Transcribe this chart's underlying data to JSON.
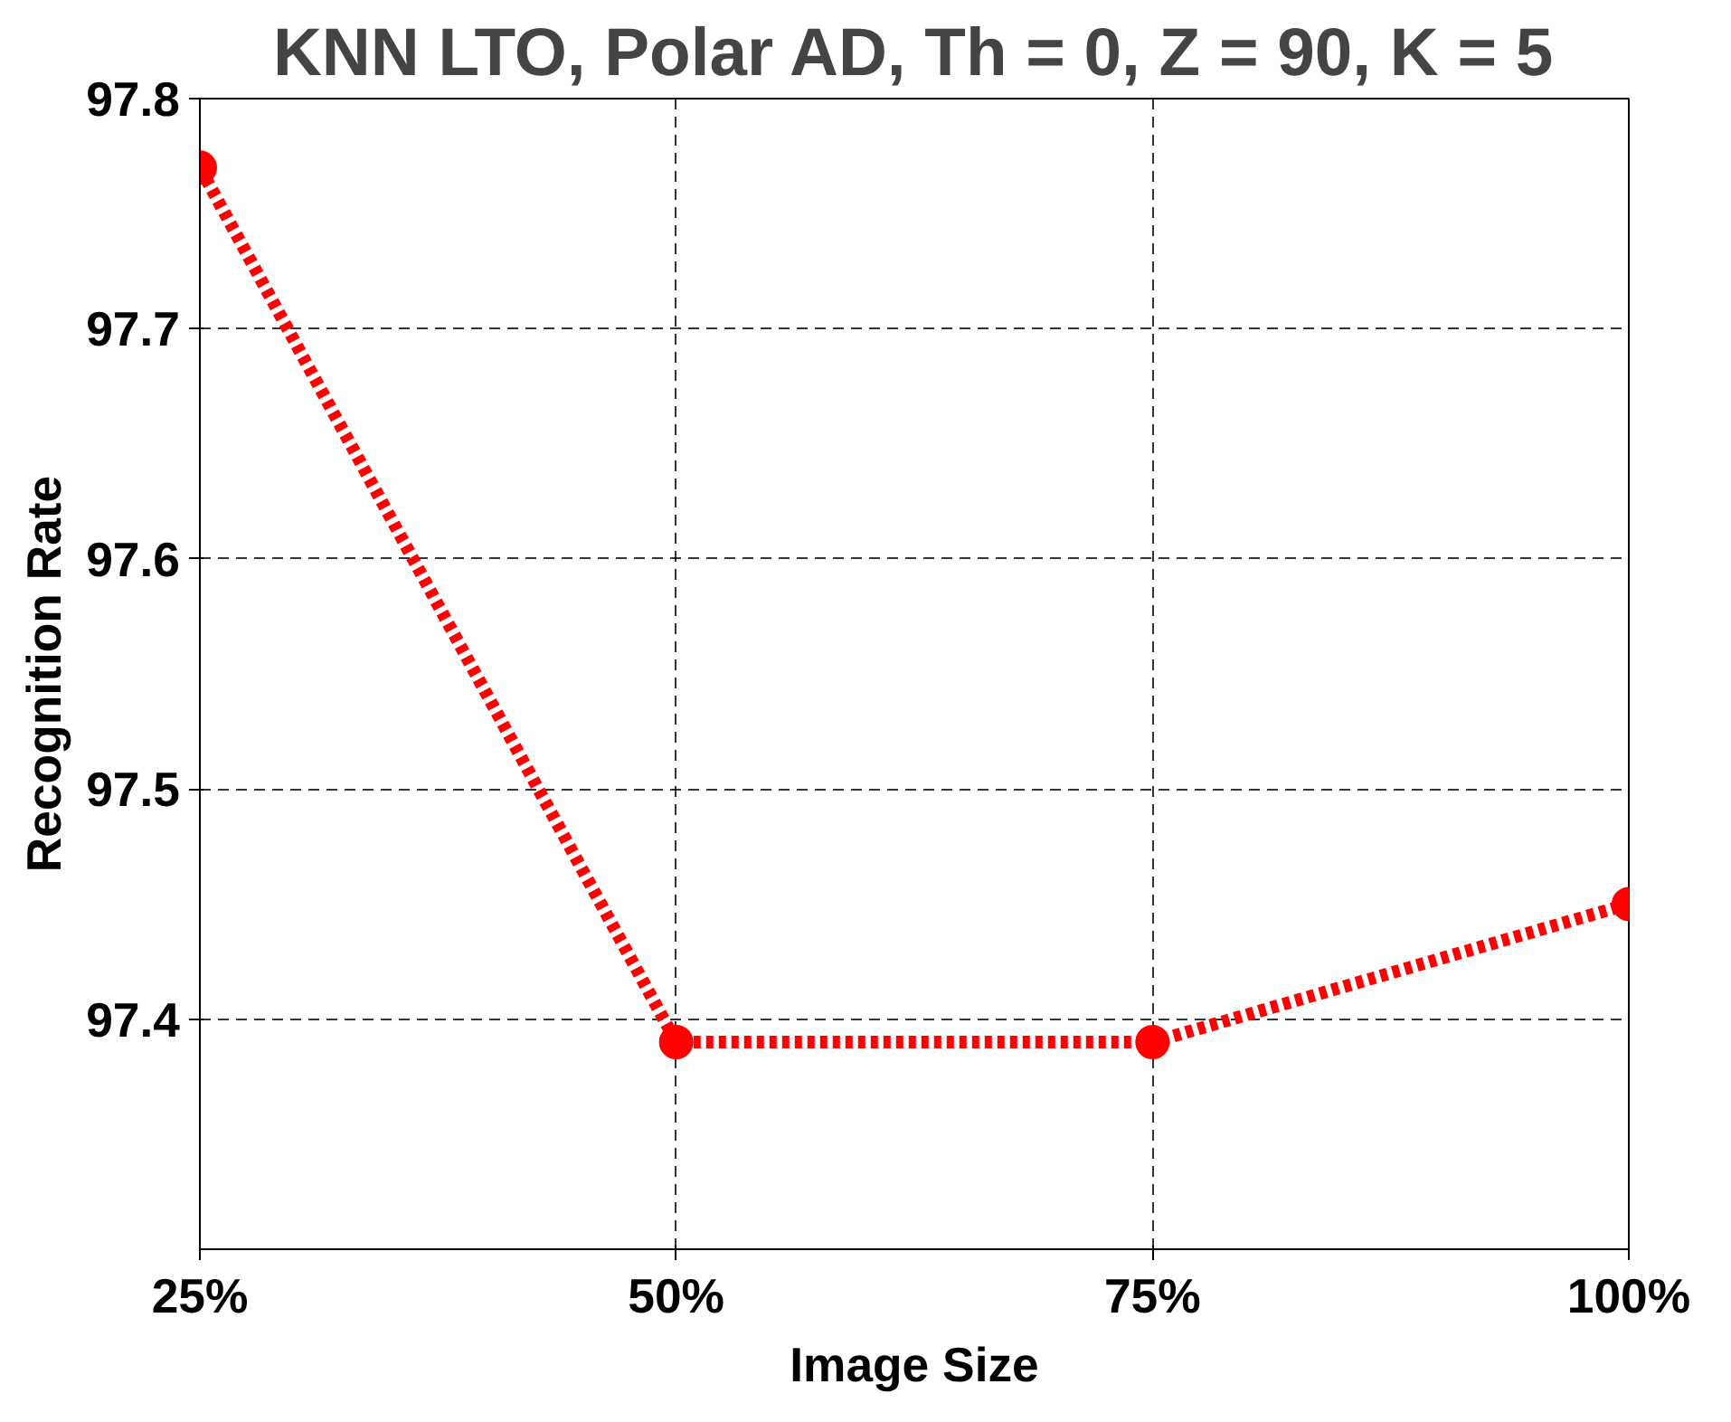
{
  "chart_data": {
    "type": "line",
    "title": "KNN LTO, Polar AD, Th = 0, Z = 90, K = 5",
    "xlabel": "Image Size",
    "ylabel": "Recognition Rate",
    "x": [
      25,
      50,
      75,
      100
    ],
    "series": [
      {
        "color": "#ff0000",
        "values": [
          97.77,
          97.39,
          97.39,
          97.45
        ]
      }
    ],
    "xlim": [
      25,
      100
    ],
    "xticks": [
      {
        "value": 25,
        "label": "25%"
      },
      {
        "value": 50,
        "label": "50%"
      },
      {
        "value": 75,
        "label": "75%"
      },
      {
        "value": 100,
        "label": "100%"
      }
    ],
    "ylim": [
      97.3,
      97.8
    ],
    "yticks": [
      97.4,
      97.5,
      97.6,
      97.7,
      97.8
    ],
    "grid": true,
    "marker": "circle",
    "line_style": "dotted"
  }
}
